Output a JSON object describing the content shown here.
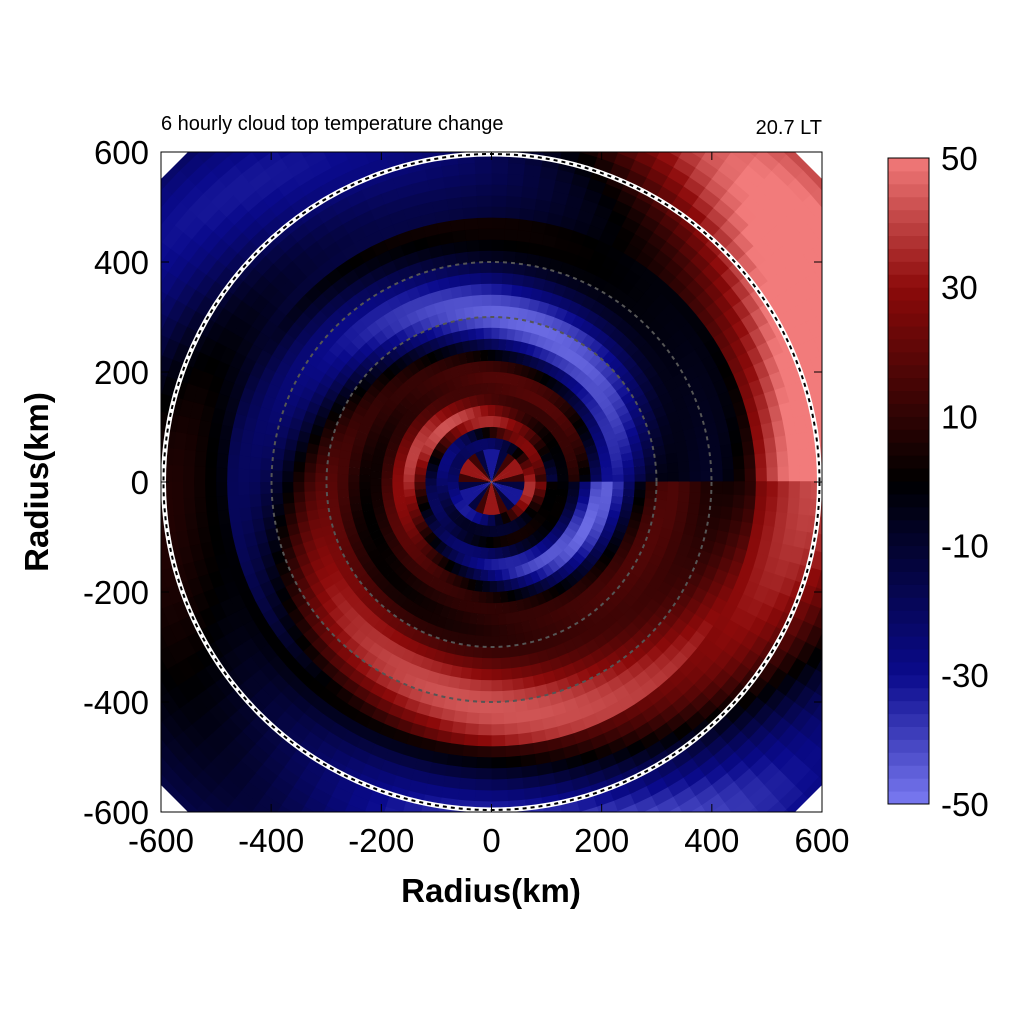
{
  "chart_data": {
    "type": "heatmap",
    "projection": "polar-storm-centered",
    "title": "6 hourly cloud top temperature change",
    "time_label": "20.7 LT",
    "xlabel": "Radius(km)",
    "ylabel": "Radius(km)",
    "xlim": [
      -600,
      600
    ],
    "ylim": [
      -600,
      600
    ],
    "x_ticks": [
      "-600",
      "-400",
      "-200",
      "0",
      "200",
      "400",
      "600"
    ],
    "y_ticks": [
      "600",
      "400",
      "200",
      "0",
      "-200",
      "-400",
      "-600"
    ],
    "colorbar": {
      "range": [
        -50,
        50
      ],
      "ticks": [
        "50",
        "30",
        "10",
        "-10",
        "-30",
        "-50"
      ],
      "colors": {
        "min": "#7b7bf2",
        "mid_low": "#000066",
        "zero": "#000000",
        "mid_high": "#660000",
        "max": "#f27b7b"
      }
    },
    "range_rings_km": [
      600,
      400,
      300
    ],
    "legend_position": "right",
    "grid": false
  }
}
